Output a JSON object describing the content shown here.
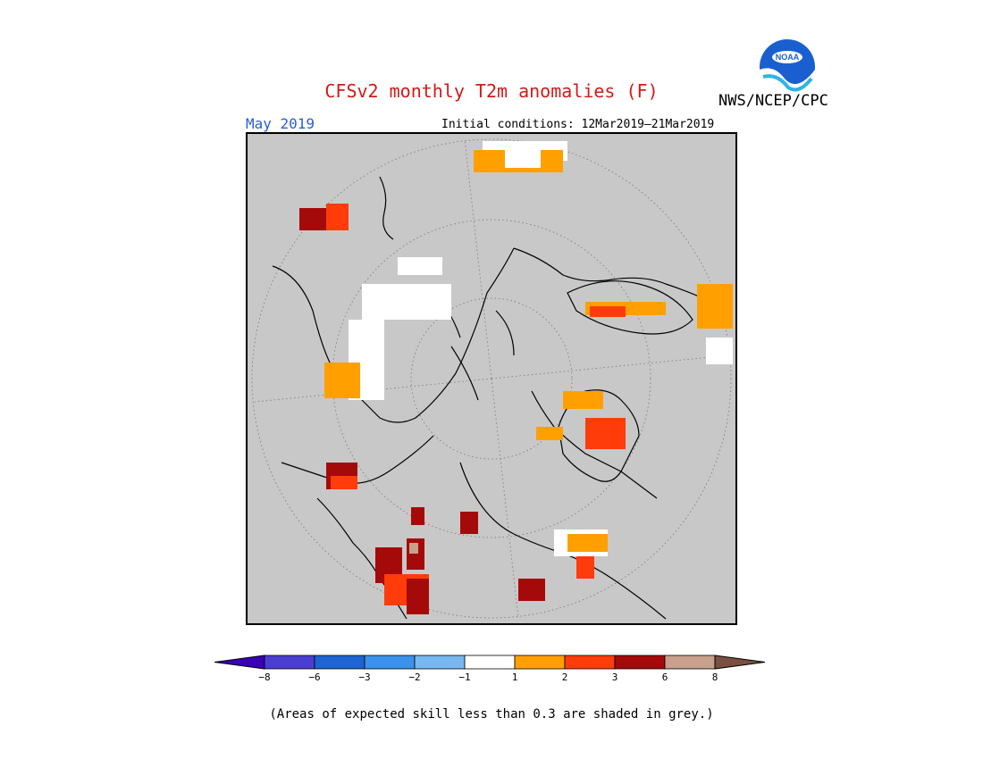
{
  "header": {
    "title": "CFSv2 monthly T2m anomalies (F)",
    "month": "May 2019",
    "initial_conditions": "Initial conditions: 12Mar2019–21Mar2019",
    "agency": "NWS/NCEP/CPC",
    "logo_text": "NOAA"
  },
  "colors": {
    "title": "#d11a1a",
    "month": "#2a5bd7",
    "ocean_grey": "#c8c8c8",
    "background": "#ffffff"
  },
  "legend": {
    "bins": [
      {
        "color": "#3a00b8"
      },
      {
        "color": "#4a3ed0"
      },
      {
        "color": "#1e64d2"
      },
      {
        "color": "#3c91ea"
      },
      {
        "color": "#78b8f0"
      },
      {
        "color": "#ffffff"
      },
      {
        "color": "#ffa000"
      },
      {
        "color": "#ff3c0a"
      },
      {
        "color": "#a50a0a"
      },
      {
        "color": "#c8a08c"
      },
      {
        "color": "#7a5040"
      }
    ],
    "tick_labels": [
      "−8",
      "−6",
      "−3",
      "−2",
      "−1",
      "1",
      "2",
      "3",
      "6",
      "8"
    ]
  },
  "footnote": "(Areas of expected skill less than 0.3 are shaded in grey.)",
  "map": {
    "projection": "north-polar-stereographic",
    "anomaly_regions": [
      {
        "region": "north-atlantic-europe-top",
        "category": "1 to 2",
        "color": "#ffa000"
      },
      {
        "region": "north-atlantic-europe-top",
        "category": "-1 to 1",
        "color": "#ffffff"
      },
      {
        "region": "western-canada-alaska",
        "category": "3 to 6",
        "color": "#a50a0a"
      },
      {
        "region": "western-canada-alaska",
        "category": "2 to 3",
        "color": "#ff3c0a"
      },
      {
        "region": "central-siberia",
        "category": "-1 to 1",
        "color": "#ffffff"
      },
      {
        "region": "eastern-siberia",
        "category": "1 to 2",
        "color": "#ffa000"
      },
      {
        "region": "greenland",
        "category": "2 to 3",
        "color": "#ff3c0a"
      },
      {
        "region": "greenland",
        "category": "1 to 2",
        "color": "#ffa000"
      },
      {
        "region": "north-africa-middle-east",
        "category": "1 to 2",
        "color": "#ffa000"
      },
      {
        "region": "north-africa-middle-east",
        "category": "3 to 6",
        "color": "#a50a0a"
      },
      {
        "region": "western-united-states",
        "category": "3 to 6",
        "color": "#a50a0a"
      },
      {
        "region": "western-united-states",
        "category": "2 to 3",
        "color": "#ff3c0a"
      },
      {
        "region": "hudson-bay-quebec",
        "category": "3 to 6",
        "color": "#a50a0a"
      },
      {
        "region": "hudson-bay-quebec",
        "category": "2 to 3",
        "color": "#ff3c0a"
      },
      {
        "region": "eastern-north-america",
        "category": "3 to 6",
        "color": "#a50a0a"
      },
      {
        "region": "eastern-north-america",
        "category": "6 to 8",
        "color": "#c8a08c"
      }
    ]
  }
}
